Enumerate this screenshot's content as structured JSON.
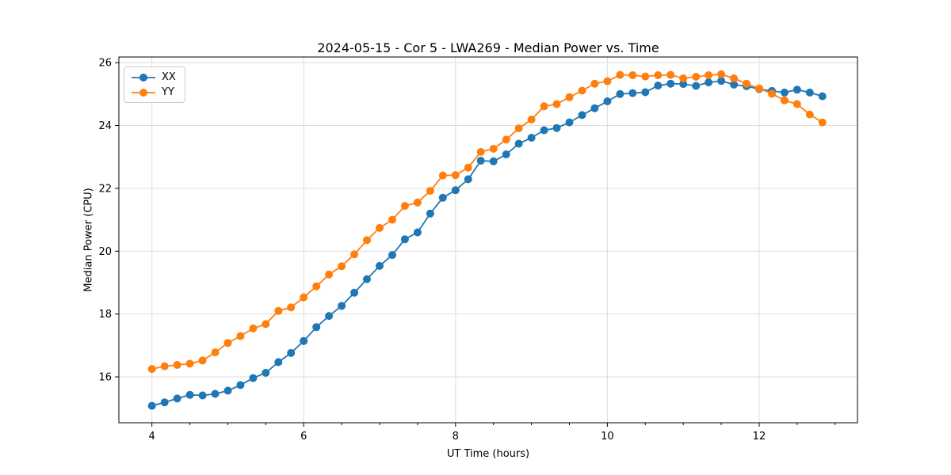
{
  "chart_data": {
    "type": "line",
    "title": "2024-05-15 - Cor 5 - LWA269 - Median Power vs. Time",
    "xlabel": "UT Time (hours)",
    "ylabel": "Median Power (CPU)",
    "xlim": [
      3.565,
      13.295
    ],
    "ylim": [
      14.54,
      26.18
    ],
    "x_major_ticks": [
      4,
      6,
      8,
      10,
      12
    ],
    "x_minor_step": 0.5,
    "y_major_ticks": [
      16,
      18,
      20,
      22,
      24,
      26
    ],
    "grid": true,
    "grid_color": "#dcdcdc",
    "legend_position": "upper-left",
    "marker": "o",
    "x": [
      4.0,
      4.167,
      4.333,
      4.5,
      4.667,
      4.833,
      5.0,
      5.167,
      5.333,
      5.5,
      5.667,
      5.833,
      6.0,
      6.167,
      6.333,
      6.5,
      6.667,
      6.833,
      7.0,
      7.167,
      7.333,
      7.5,
      7.667,
      7.833,
      8.0,
      8.167,
      8.333,
      8.5,
      8.667,
      8.833,
      9.0,
      9.167,
      9.333,
      9.5,
      9.667,
      9.833,
      10.0,
      10.167,
      10.333,
      10.5,
      10.667,
      10.833,
      11.0,
      11.167,
      11.333,
      11.5,
      11.667,
      11.833,
      12.0,
      12.167,
      12.333,
      12.5,
      12.667,
      12.833
    ],
    "series": [
      {
        "name": "XX",
        "color": "#1f77b4",
        "values": [
          15.08,
          15.19,
          15.31,
          15.43,
          15.41,
          15.46,
          15.56,
          15.74,
          15.96,
          16.13,
          16.47,
          16.76,
          17.14,
          17.58,
          17.94,
          18.26,
          18.68,
          19.11,
          19.53,
          19.88,
          20.38,
          20.6,
          21.2,
          21.7,
          21.94,
          22.29,
          22.88,
          22.86,
          23.08,
          23.42,
          23.61,
          23.85,
          23.92,
          24.1,
          24.33,
          24.55,
          24.77,
          25.0,
          25.03,
          25.06,
          25.27,
          25.33,
          25.32,
          25.26,
          25.37,
          25.42,
          25.3,
          25.25,
          25.16,
          25.1,
          25.05,
          25.14,
          25.05,
          24.93
        ]
      },
      {
        "name": "YY",
        "color": "#ff7f0e",
        "values": [
          16.25,
          16.34,
          16.38,
          16.42,
          16.52,
          16.78,
          17.08,
          17.3,
          17.54,
          17.68,
          18.1,
          18.21,
          18.53,
          18.88,
          19.26,
          19.52,
          19.9,
          20.35,
          20.74,
          21.0,
          21.44,
          21.55,
          21.92,
          22.41,
          22.42,
          22.66,
          23.16,
          23.26,
          23.55,
          23.91,
          24.19,
          24.61,
          24.68,
          24.9,
          25.11,
          25.33,
          25.41,
          25.61,
          25.6,
          25.56,
          25.6,
          25.61,
          25.5,
          25.55,
          25.6,
          25.63,
          25.5,
          25.33,
          25.18,
          25.01,
          24.8,
          24.68,
          24.35,
          24.1
        ]
      }
    ]
  }
}
